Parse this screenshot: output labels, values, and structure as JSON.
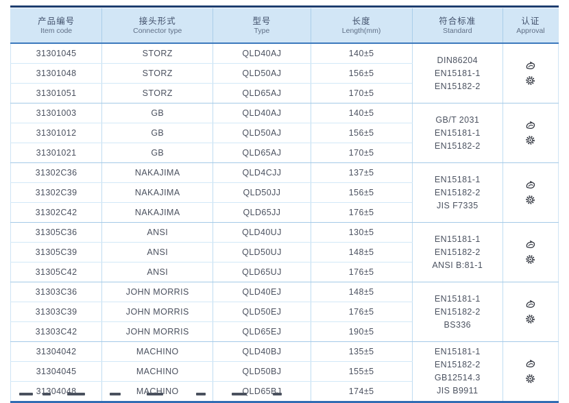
{
  "table": {
    "columns": [
      {
        "cn": "产品编号",
        "en": "Item code"
      },
      {
        "cn": "接头形式",
        "en": "Connector type"
      },
      {
        "cn": "型号",
        "en": "Type"
      },
      {
        "cn": "长度",
        "en": "Length(mm)"
      },
      {
        "cn": "符合标准",
        "en": "Standard"
      },
      {
        "cn": "认证",
        "en": "Approval"
      }
    ],
    "groups": [
      {
        "rows": [
          [
            "31301045",
            "STORZ",
            "QLD40AJ",
            "140±5"
          ],
          [
            "31301048",
            "STORZ",
            "QLD50AJ",
            "156±5"
          ],
          [
            "31301051",
            "STORZ",
            "QLD65AJ",
            "170±5"
          ]
        ],
        "standards": [
          "DIN86204",
          "EN15181-1",
          "EN15182-2"
        ],
        "approval_icons": [
          "classification-logo-icon",
          "gear-badge-icon"
        ]
      },
      {
        "rows": [
          [
            "31301003",
            "GB",
            "QLD40AJ",
            "140±5"
          ],
          [
            "31301012",
            "GB",
            "QLD50AJ",
            "156±5"
          ],
          [
            "31301021",
            "GB",
            "QLD65AJ",
            "170±5"
          ]
        ],
        "standards": [
          "GB/T 2031",
          "EN15181-1",
          "EN15182-2"
        ],
        "approval_icons": [
          "classification-logo-icon",
          "gear-badge-icon"
        ]
      },
      {
        "rows": [
          [
            "31302C36",
            "NAKAJIMA",
            "QLD4CJJ",
            "137±5"
          ],
          [
            "31302C39",
            "NAKAJIMA",
            "QLD50JJ",
            "156±5"
          ],
          [
            "31302C42",
            "NAKAJIMA",
            "QLD65JJ",
            "176±5"
          ]
        ],
        "standards": [
          "EN15181-1",
          "EN15182-2",
          "JIS F7335"
        ],
        "approval_icons": [
          "classification-logo-icon",
          "gear-badge-icon"
        ]
      },
      {
        "rows": [
          [
            "31305C36",
            "ANSI",
            "QLD40UJ",
            "130±5"
          ],
          [
            "31305C39",
            "ANSI",
            "QLD50UJ",
            "148±5"
          ],
          [
            "31305C42",
            "ANSI",
            "QLD65UJ",
            "176±5"
          ]
        ],
        "standards": [
          "EN15181-1",
          "EN15182-2",
          "ANSI B:81-1"
        ],
        "approval_icons": [
          "classification-logo-icon",
          "gear-badge-icon"
        ]
      },
      {
        "rows": [
          [
            "31303C36",
            "JOHN MORRIS",
            "QLD40EJ",
            "148±5"
          ],
          [
            "31303C39",
            "JOHN MORRIS",
            "QLD50EJ",
            "176±5"
          ],
          [
            "31303C42",
            "JOHN MORRIS",
            "QLD65EJ",
            "190±5"
          ]
        ],
        "standards": [
          "EN15181-1",
          "EN15182-2",
          "BS336"
        ],
        "approval_icons": [
          "classification-logo-icon",
          "gear-badge-icon"
        ]
      },
      {
        "rows": [
          [
            "31304042",
            "MACHINO",
            "QLD40BJ",
            "135±5"
          ],
          [
            "31304045",
            "MACHINO",
            "QLD50BJ",
            "155±5"
          ],
          [
            "31304048",
            "MACHINO",
            "QLD65BJ",
            "174±5"
          ]
        ],
        "standards": [
          "EN15181-1",
          "EN15182-2",
          "GB12514.3",
          "JIS B9911"
        ],
        "approval_icons": [
          "classification-logo-icon",
          "gear-badge-icon"
        ]
      }
    ]
  },
  "colors": {
    "top_rule": "#1d3d6f",
    "header_bg": "#d2e6f6",
    "header_rule": "#3b78bd",
    "bottom_rule": "#2f6cb3",
    "row_divider": "#d2e8f7",
    "group_divider": "#a3c9e7",
    "column_divider": "#bedcf1",
    "text": "#4a505e",
    "icon": "#2f333d"
  }
}
